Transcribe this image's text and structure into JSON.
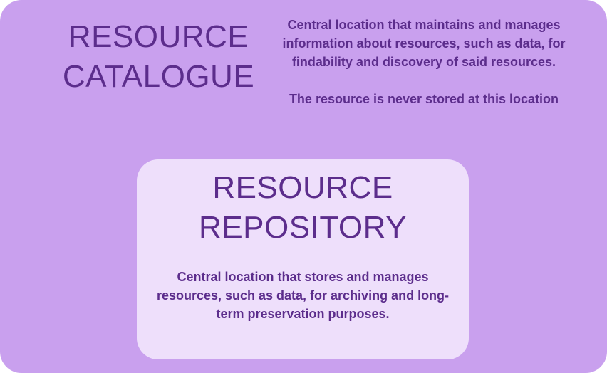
{
  "catalogue": {
    "title_line1": "RESOURCE",
    "title_line2": "CATALOGUE",
    "description": "Central location that maintains and manages information about resources, such as data, for findability and discovery of said resources.",
    "note": "The resource is never stored at this location"
  },
  "repository": {
    "title_line1": "RESOURCE",
    "title_line2": "REPOSITORY",
    "description": "Central location that stores and manages resources, such as data, for archiving and long-term preservation purposes."
  },
  "colors": {
    "outer_box": "#c9a0ee",
    "inner_box": "#eedffb",
    "text": "#5c2d8c"
  }
}
